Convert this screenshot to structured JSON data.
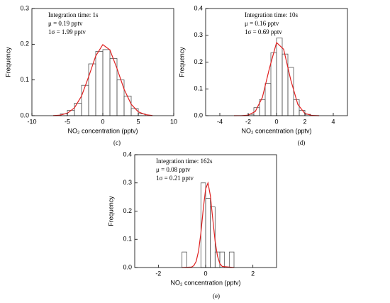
{
  "chart_data": [
    {
      "type": "histogram",
      "panel": "(c)",
      "xlabel": "NO₂ concentration (pptv)",
      "ylabel": "Frequency",
      "annotations": [
        "Integration time: 1s",
        "μ   = 0.19 pptv",
        "1σ = 1.99 pptv"
      ],
      "bins": [
        -6,
        -5,
        -4,
        -3,
        -2,
        -1,
        0,
        1,
        2,
        3,
        4,
        5,
        6
      ],
      "values": [
        0.005,
        0.015,
        0.035,
        0.085,
        0.145,
        0.18,
        0.185,
        0.16,
        0.1,
        0.055,
        0.02,
        0.005
      ],
      "color": "#555555",
      "fit": {
        "x": [
          -7,
          -6,
          -5,
          -4,
          -3,
          -2,
          -1,
          0,
          1,
          2,
          3,
          4,
          5,
          6,
          7
        ],
        "values": [
          0.0003,
          0.0016,
          0.0067,
          0.022,
          0.055,
          0.109,
          0.167,
          0.199,
          0.184,
          0.132,
          0.074,
          0.032,
          0.0108,
          0.0028,
          0.0006
        ],
        "color": "#e02020"
      },
      "xlim": [
        -10,
        10
      ],
      "xticks": [
        -10,
        -5,
        0,
        5,
        10
      ],
      "ylim": [
        0,
        0.3
      ],
      "yticks": [
        {
          "value": 0,
          "label": "0.0"
        },
        0.1,
        0.2,
        0.3
      ]
    },
    {
      "type": "histogram",
      "panel": "(d)",
      "xlabel": "NO₂ concentration (pptv)",
      "ylabel": "Frequency",
      "annotations": [
        "Integration time: 10s",
        "μ   = 0.16 pptv",
        "1σ = 0.69 pptv"
      ],
      "bins": [
        -2,
        -1.6,
        -1.2,
        -0.8,
        -0.4,
        0,
        0.4,
        0.8,
        1.2,
        1.6,
        2,
        2.4
      ],
      "values": [
        0.005,
        0.03,
        0.06,
        0.12,
        0.235,
        0.29,
        0.23,
        0.18,
        0.06,
        0.02,
        0.005
      ],
      "color": "#555555",
      "fit": {
        "x": [
          -3,
          -2.5,
          -2,
          -1.5,
          -1,
          -0.5,
          0,
          0.5,
          1,
          1.5,
          2,
          2.5,
          3
        ],
        "values": [
          0,
          0.0002,
          0.002,
          0.0154,
          0.068,
          0.177,
          0.273,
          0.248,
          0.134,
          0.042,
          0.008,
          0.0009,
          0
        ],
        "color": "#e02020"
      },
      "xlim": [
        -5,
        5
      ],
      "xticks": [
        -4,
        -2,
        0,
        2,
        4
      ],
      "ylim": [
        0,
        0.4
      ],
      "yticks": [
        {
          "value": 0,
          "label": "0.0"
        },
        0.1,
        0.2,
        0.3,
        0.4
      ]
    },
    {
      "type": "histogram",
      "panel": "(e)",
      "xlabel": "NO₂ concentration (pptv)",
      "ylabel": "Frequency",
      "annotations": [
        "Integration time: 162s",
        "μ   = 0.08 pptv",
        "1σ = 0.21 pptv"
      ],
      "bins": [
        -1,
        -0.8,
        -0.6,
        -0.4,
        -0.2,
        0,
        0.2,
        0.4,
        0.6,
        0.8,
        1,
        1.2
      ],
      "values": [
        0.055,
        0,
        0,
        0,
        0.3,
        0.245,
        0.215,
        0.055,
        0.055,
        0,
        0.055
      ],
      "color": "#555555",
      "fit": {
        "x": [
          -1,
          -0.6,
          -0.5,
          -0.4,
          -0.3,
          -0.2,
          -0.1,
          0,
          0.1,
          0.2,
          0.3,
          0.4,
          0.5,
          0.6,
          0.7,
          1.2
        ],
        "values": [
          0,
          0.0016,
          0.0066,
          0.022,
          0.058,
          0.123,
          0.208,
          0.279,
          0.3,
          0.255,
          0.173,
          0.094,
          0.041,
          0.014,
          0.004,
          0
        ],
        "color": "#e02020"
      },
      "xlim": [
        -3,
        3
      ],
      "xticks": [
        -2,
        0,
        2
      ],
      "ylim": [
        0,
        0.4
      ],
      "yticks": [
        {
          "value": 0,
          "label": "0.0"
        },
        0.1,
        0.2,
        0.3,
        0.4
      ]
    }
  ]
}
